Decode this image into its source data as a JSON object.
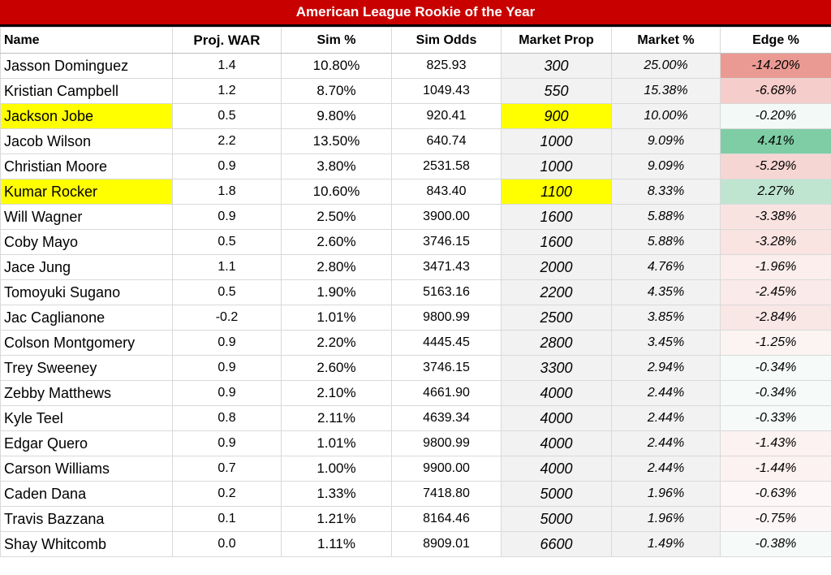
{
  "title": "American League Rookie of the Year",
  "colors": {
    "title_bg": "#c80000",
    "highlight": "#ffff00",
    "market_bg": "#f2f2f2"
  },
  "headers": {
    "name": "Name",
    "proj_war": "Proj. WAR",
    "sim_pct": "Sim %",
    "sim_odds": "Sim Odds",
    "market_prop": "Market Prop",
    "market_pct": "Market %",
    "edge_pct": "Edge %"
  },
  "rows": [
    {
      "name": "Jasson Dominguez",
      "war": "1.4",
      "sim": "10.80%",
      "odds": "825.93",
      "prop": "300",
      "mkt": "25.00%",
      "edge": "-14.20%",
      "highlight": false,
      "edge_color": "#ea9a93"
    },
    {
      "name": "Kristian Campbell",
      "war": "1.2",
      "sim": "8.70%",
      "odds": "1049.43",
      "prop": "550",
      "mkt": "15.38%",
      "edge": "-6.68%",
      "highlight": false,
      "edge_color": "#f5cdca"
    },
    {
      "name": "Jackson Jobe",
      "war": "0.5",
      "sim": "9.80%",
      "odds": "920.41",
      "prop": "900",
      "mkt": "10.00%",
      "edge": "-0.20%",
      "highlight": true,
      "edge_color": "#f3f9f6"
    },
    {
      "name": "Jacob Wilson",
      "war": "2.2",
      "sim": "13.50%",
      "odds": "640.74",
      "prop": "1000",
      "mkt": "9.09%",
      "edge": "4.41%",
      "highlight": false,
      "edge_color": "#7fcda5"
    },
    {
      "name": "Christian Moore",
      "war": "0.9",
      "sim": "3.80%",
      "odds": "2531.58",
      "prop": "1000",
      "mkt": "9.09%",
      "edge": "-5.29%",
      "highlight": false,
      "edge_color": "#f6d6d3"
    },
    {
      "name": "Kumar Rocker",
      "war": "1.8",
      "sim": "10.60%",
      "odds": "843.40",
      "prop": "1100",
      "mkt": "8.33%",
      "edge": "2.27%",
      "highlight": true,
      "edge_color": "#bfe5d1"
    },
    {
      "name": "Will Wagner",
      "war": "0.9",
      "sim": "2.50%",
      "odds": "3900.00",
      "prop": "1600",
      "mkt": "5.88%",
      "edge": "-3.38%",
      "highlight": false,
      "edge_color": "#f9e3e1"
    },
    {
      "name": "Coby Mayo",
      "war": "0.5",
      "sim": "2.60%",
      "odds": "3746.15",
      "prop": "1600",
      "mkt": "5.88%",
      "edge": "-3.28%",
      "highlight": false,
      "edge_color": "#f9e4e2"
    },
    {
      "name": "Jace Jung",
      "war": "1.1",
      "sim": "2.80%",
      "odds": "3471.43",
      "prop": "2000",
      "mkt": "4.76%",
      "edge": "-1.96%",
      "highlight": false,
      "edge_color": "#fbeeed"
    },
    {
      "name": "Tomoyuki Sugano",
      "war": "0.5",
      "sim": "1.90%",
      "odds": "5163.16",
      "prop": "2200",
      "mkt": "4.35%",
      "edge": "-2.45%",
      "highlight": false,
      "edge_color": "#faeae9"
    },
    {
      "name": "Jac Caglianone",
      "war": "-0.2",
      "sim": "1.01%",
      "odds": "9800.99",
      "prop": "2500",
      "mkt": "3.85%",
      "edge": "-2.84%",
      "highlight": false,
      "edge_color": "#f9e7e5"
    },
    {
      "name": "Colson Montgomery",
      "war": "0.9",
      "sim": "2.20%",
      "odds": "4445.45",
      "prop": "2800",
      "mkt": "3.45%",
      "edge": "-1.25%",
      "highlight": false,
      "edge_color": "#fcf3f3"
    },
    {
      "name": "Trey Sweeney",
      "war": "0.9",
      "sim": "2.60%",
      "odds": "3746.15",
      "prop": "3300",
      "mkt": "2.94%",
      "edge": "-0.34%",
      "highlight": false,
      "edge_color": "#f6faf8"
    },
    {
      "name": "Zebby Matthews",
      "war": "0.9",
      "sim": "2.10%",
      "odds": "4661.90",
      "prop": "4000",
      "mkt": "2.44%",
      "edge": "-0.34%",
      "highlight": false,
      "edge_color": "#f6faf8"
    },
    {
      "name": "Kyle Teel",
      "war": "0.8",
      "sim": "2.11%",
      "odds": "4639.34",
      "prop": "4000",
      "mkt": "2.44%",
      "edge": "-0.33%",
      "highlight": false,
      "edge_color": "#f6faf8"
    },
    {
      "name": "Edgar Quero",
      "war": "0.9",
      "sim": "1.01%",
      "odds": "9800.99",
      "prop": "4000",
      "mkt": "2.44%",
      "edge": "-1.43%",
      "highlight": false,
      "edge_color": "#fcf2f1"
    },
    {
      "name": "Carson Williams",
      "war": "0.7",
      "sim": "1.00%",
      "odds": "9900.00",
      "prop": "4000",
      "mkt": "2.44%",
      "edge": "-1.44%",
      "highlight": false,
      "edge_color": "#fcf2f1"
    },
    {
      "name": "Caden Dana",
      "war": "0.2",
      "sim": "1.33%",
      "odds": "7418.80",
      "prop": "5000",
      "mkt": "1.96%",
      "edge": "-0.63%",
      "highlight": false,
      "edge_color": "#fdf7f7"
    },
    {
      "name": "Travis Bazzana",
      "war": "0.1",
      "sim": "1.21%",
      "odds": "8164.46",
      "prop": "5000",
      "mkt": "1.96%",
      "edge": "-0.75%",
      "highlight": false,
      "edge_color": "#fdf6f6"
    },
    {
      "name": "Shay Whitcomb",
      "war": "0.0",
      "sim": "1.11%",
      "odds": "8909.01",
      "prop": "6600",
      "mkt": "1.49%",
      "edge": "-0.38%",
      "highlight": false,
      "edge_color": "#f6faf8"
    }
  ]
}
